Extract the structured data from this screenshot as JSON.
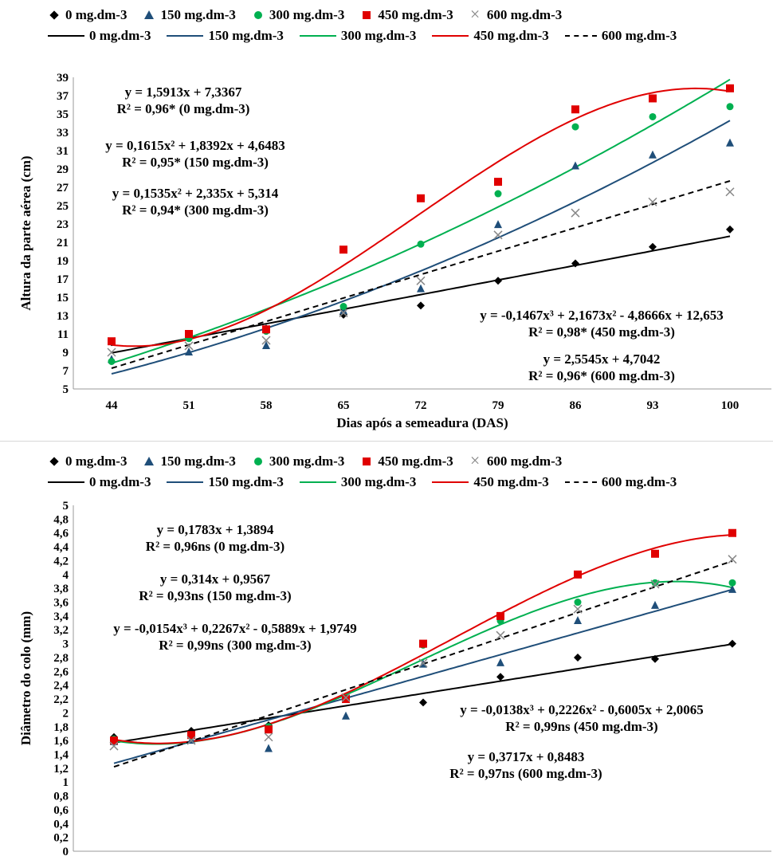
{
  "legend": {
    "markers": [
      "0 mg.dm-3",
      "150 mg.dm-3",
      "300 mg.dm-3",
      "450 mg.dm-3",
      "600 mg.dm-3"
    ],
    "lines": [
      "0 mg.dm-3",
      "150 mg.dm-3",
      "300 mg.dm-3",
      "450 mg.dm-3",
      "600 mg.dm-3"
    ]
  },
  "colors": {
    "s0": "#000000",
    "s150": "#1f4e79",
    "s300": "#00b050",
    "s450": "#e00000",
    "s600": "#888888"
  },
  "top": {
    "equations": [
      {
        "eq": "y = 1,5913x + 7,3367",
        "r2": "R² = 0,96* (0 mg.dm-3)"
      },
      {
        "eq": "y = 0,1615x² + 1,8392x + 4,6483",
        "r2": "R² = 0,95* (150 mg.dm-3)"
      },
      {
        "eq": "y = 0,1535x² + 2,335x + 5,314",
        "r2": "R² = 0,94* (300 mg.dm-3)"
      },
      {
        "eq": "y = -0,1467x³ + 2,1673x² - 4,8666x + 12,653",
        "r2": "R² = 0,98* (450 mg.dm-3)"
      },
      {
        "eq": "y = 2,5545x + 4,7042",
        "r2": "R² = 0,96* (600 mg.dm-3)"
      }
    ]
  },
  "bottom": {
    "equations": [
      {
        "eq": "y = 0,1783x + 1,3894",
        "r2": "R² = 0,96ns (0 mg.dm-3)"
      },
      {
        "eq": "y = 0,314x + 0,9567",
        "r2": "R² = 0,93ns (150 mg.dm-3)"
      },
      {
        "eq": "y = -0,0154x³ + 0,2267x² - 0,5889x + 1,9749",
        "r2": "R² = 0,99ns (300 mg.dm-3)"
      },
      {
        "eq": "y = -0,0138x³ + 0,2226x² - 0,6005x + 2,0065",
        "r2": "R² = 0,99ns (450 mg.dm-3)"
      },
      {
        "eq": "y = 0,3717x + 0,8483",
        "r2": "R² = 0,97ns (600 mg.dm-3)"
      }
    ]
  },
  "chart_data": [
    {
      "type": "scatter",
      "xlabel": "Dias após a semeadura (DAS)",
      "ylabel": "Altura da parte aérea (cm)",
      "categories": [
        "44",
        "51",
        "58",
        "65",
        "72",
        "79",
        "86",
        "93",
        "100"
      ],
      "ylim": [
        5,
        39
      ],
      "yticks": [
        5,
        7,
        9,
        11,
        13,
        15,
        17,
        19,
        21,
        23,
        25,
        27,
        29,
        31,
        33,
        35,
        37,
        39
      ],
      "series": [
        {
          "name": "0 mg.dm-3",
          "values": [
            10.1,
            10.9,
            11.6,
            13.1,
            14.1,
            16.8,
            18.7,
            20.5,
            22.4
          ],
          "fit": {
            "type": "poly",
            "coef": [
              7.3367,
              1.5913
            ]
          }
        },
        {
          "name": "150 mg.dm-3",
          "values": [
            8.2,
            9.0,
            9.7,
            13.5,
            15.9,
            22.9,
            29.3,
            30.5,
            31.8
          ],
          "fit": {
            "type": "poly",
            "coef": [
              4.6483,
              1.8392,
              0.1615
            ]
          }
        },
        {
          "name": "300 mg.dm-3",
          "values": [
            8.0,
            10.5,
            11.3,
            14.0,
            20.8,
            26.3,
            33.6,
            34.7,
            35.8
          ],
          "fit": {
            "type": "poly",
            "coef": [
              5.314,
              2.335,
              0.1535
            ]
          }
        },
        {
          "name": "450 mg.dm-3",
          "values": [
            10.2,
            11.0,
            11.5,
            20.2,
            25.8,
            27.6,
            35.5,
            36.7,
            37.8
          ],
          "fit": {
            "type": "poly",
            "coef": [
              12.653,
              -4.8666,
              2.1673,
              -0.1467
            ]
          }
        },
        {
          "name": "600 mg.dm-3",
          "values": [
            9.0,
            9.7,
            10.3,
            13.3,
            16.8,
            21.8,
            24.2,
            25.4,
            26.5
          ],
          "fit": {
            "type": "poly",
            "coef": [
              4.7042,
              2.5545
            ]
          }
        }
      ]
    },
    {
      "type": "scatter",
      "xlabel": "Dia após a semeadura (DAS)",
      "ylabel": "Diâmetro do colo (mm)",
      "categories": [
        "44",
        "51",
        "58",
        "65",
        "72",
        "79",
        "86",
        "93",
        "100"
      ],
      "ylim": [
        0,
        5
      ],
      "yticks": [
        0,
        0.2,
        0.4,
        0.6,
        0.8,
        1,
        1.2,
        1.4,
        1.6,
        1.8,
        2,
        2.2,
        2.4,
        2.6,
        2.8,
        3,
        3.2,
        3.4,
        3.6,
        3.8,
        4,
        4.2,
        4.4,
        4.6,
        4.8,
        5
      ],
      "series": [
        {
          "name": "0 mg.dm-3",
          "values": [
            1.65,
            1.74,
            1.82,
            2.2,
            2.15,
            2.52,
            2.8,
            2.78,
            3.0
          ],
          "fit": {
            "type": "poly",
            "coef": [
              1.3894,
              0.1783
            ]
          }
        },
        {
          "name": "150 mg.dm-3",
          "values": [
            1.58,
            1.6,
            1.48,
            1.95,
            2.7,
            2.72,
            3.33,
            3.55,
            3.78
          ],
          "fit": {
            "type": "poly",
            "coef": [
              0.9567,
              0.314
            ]
          }
        },
        {
          "name": "300 mg.dm-3",
          "values": [
            1.62,
            1.66,
            1.8,
            2.2,
            2.98,
            3.33,
            3.6,
            3.88,
            3.88
          ],
          "fit": {
            "type": "poly",
            "coef": [
              1.9749,
              -0.5889,
              0.2267,
              -0.0154
            ]
          }
        },
        {
          "name": "450 mg.dm-3",
          "values": [
            1.6,
            1.68,
            1.76,
            2.2,
            3.0,
            3.4,
            4.0,
            4.3,
            4.6
          ],
          "fit": {
            "type": "poly",
            "coef": [
              2.0065,
              -0.6005,
              0.2226,
              -0.0138
            ]
          }
        },
        {
          "name": "600 mg.dm-3",
          "values": [
            1.52,
            1.6,
            1.65,
            2.22,
            2.72,
            3.12,
            3.5,
            3.86,
            4.22
          ],
          "fit": {
            "type": "poly",
            "coef": [
              0.8483,
              0.3717
            ]
          }
        }
      ]
    }
  ]
}
